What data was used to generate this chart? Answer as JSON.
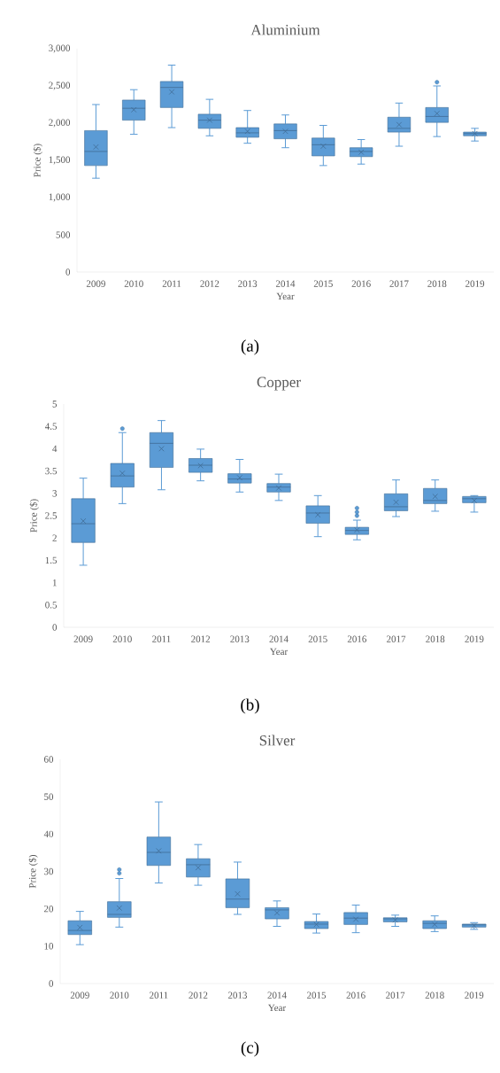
{
  "chart_data": [
    {
      "type": "box",
      "title": "Aluminium",
      "xlabel": "Year",
      "ylabel": "Price ($)",
      "annotations": [
        "(a)"
      ],
      "color": "#5b9bd5",
      "categories": [
        "2009",
        "2010",
        "2011",
        "2012",
        "2013",
        "2014",
        "2015",
        "2016",
        "2017",
        "2018",
        "2019"
      ],
      "ylim": [
        0,
        3000
      ],
      "yticks": [
        0,
        500,
        {
          "value": 1000,
          "label": "1,000"
        },
        {
          "value": 1500,
          "label": "1,500"
        },
        {
          "value": 2000,
          "label": "2,000"
        },
        {
          "value": 2500,
          "label": "2,500"
        },
        {
          "value": 3000,
          "label": "3,000"
        }
      ],
      "boxes": [
        {
          "low": 1260,
          "q1": 1430,
          "median": 1620,
          "q3": 1900,
          "high": 2250,
          "mean": 1680
        },
        {
          "low": 1850,
          "q1": 2040,
          "median": 2200,
          "q3": 2310,
          "high": 2450,
          "mean": 2180
        },
        {
          "low": 1940,
          "q1": 2210,
          "median": 2480,
          "q3": 2560,
          "high": 2780,
          "mean": 2420
        },
        {
          "low": 1830,
          "q1": 1930,
          "median": 2040,
          "q3": 2120,
          "high": 2320,
          "mean": 2040
        },
        {
          "low": 1730,
          "q1": 1810,
          "median": 1870,
          "q3": 1940,
          "high": 2170,
          "mean": 1890
        },
        {
          "low": 1670,
          "q1": 1790,
          "median": 1900,
          "q3": 1990,
          "high": 2110,
          "mean": 1890
        },
        {
          "low": 1430,
          "q1": 1560,
          "median": 1710,
          "q3": 1800,
          "high": 1970,
          "mean": 1690
        },
        {
          "low": 1450,
          "q1": 1550,
          "median": 1620,
          "q3": 1670,
          "high": 1780,
          "mean": 1610
        },
        {
          "low": 1690,
          "q1": 1880,
          "median": 1930,
          "q3": 2080,
          "high": 2270,
          "mean": 1980
        },
        {
          "low": 1820,
          "q1": 2010,
          "median": 2090,
          "q3": 2210,
          "high": 2500,
          "mean": 2130,
          "outliers": [
            2550
          ]
        },
        {
          "low": 1760,
          "q1": 1830,
          "median": 1860,
          "q3": 1880,
          "high": 1930,
          "mean": 1860
        }
      ]
    },
    {
      "type": "box",
      "title": "Copper",
      "xlabel": "Year",
      "ylabel": "Price ($)",
      "annotations": [
        "(b)"
      ],
      "color": "#5b9bd5",
      "categories": [
        "2009",
        "2010",
        "2011",
        "2012",
        "2013",
        "2014",
        "2015",
        "2016",
        "2017",
        "2018",
        "2019"
      ],
      "ylim": [
        0,
        5
      ],
      "yticks": [
        0,
        0.5,
        1,
        1.5,
        2,
        2.5,
        3,
        3.5,
        4,
        4.5,
        5
      ],
      "boxes": [
        {
          "low": 1.39,
          "q1": 1.9,
          "median": 2.32,
          "q3": 2.88,
          "high": 3.34,
          "mean": 2.38
        },
        {
          "low": 2.77,
          "q1": 3.14,
          "median": 3.39,
          "q3": 3.67,
          "high": 4.36,
          "mean": 3.45,
          "outliers": [
            4.45
          ]
        },
        {
          "low": 3.08,
          "q1": 3.58,
          "median": 4.12,
          "q3": 4.36,
          "high": 4.63,
          "mean": 4.0
        },
        {
          "low": 3.28,
          "q1": 3.47,
          "median": 3.63,
          "q3": 3.78,
          "high": 3.99,
          "mean": 3.62
        },
        {
          "low": 3.03,
          "q1": 3.23,
          "median": 3.32,
          "q3": 3.44,
          "high": 3.76,
          "mean": 3.35
        },
        {
          "low": 2.84,
          "q1": 3.03,
          "median": 3.14,
          "q3": 3.22,
          "high": 3.43,
          "mean": 3.12
        },
        {
          "low": 2.03,
          "q1": 2.33,
          "median": 2.56,
          "q3": 2.72,
          "high": 2.95,
          "mean": 2.52
        },
        {
          "low": 1.96,
          "q1": 2.08,
          "median": 2.17,
          "q3": 2.24,
          "high": 2.4,
          "mean": 2.18,
          "outliers": [
            2.5,
            2.58,
            2.67
          ]
        },
        {
          "low": 2.48,
          "q1": 2.61,
          "median": 2.7,
          "q3": 2.99,
          "high": 3.3,
          "mean": 2.8
        },
        {
          "low": 2.6,
          "q1": 2.77,
          "median": 2.84,
          "q3": 3.11,
          "high": 3.3,
          "mean": 2.93
        },
        {
          "low": 2.58,
          "q1": 2.79,
          "median": 2.88,
          "q3": 2.93,
          "high": 2.95,
          "mean": 2.84
        }
      ]
    },
    {
      "type": "box",
      "title": "Silver",
      "xlabel": "Year",
      "ylabel": "Price ($)",
      "annotations": [
        "(c)"
      ],
      "color": "#5b9bd5",
      "categories": [
        "2009",
        "2010",
        "2011",
        "2012",
        "2013",
        "2014",
        "2015",
        "2016",
        "2017",
        "2018",
        "2019"
      ],
      "ylim": [
        0,
        60
      ],
      "yticks": [
        0,
        10,
        20,
        30,
        40,
        50,
        60
      ],
      "boxes": [
        {
          "low": 10.4,
          "q1": 13.1,
          "median": 14.2,
          "q3": 16.8,
          "high": 19.3,
          "mean": 15.0
        },
        {
          "low": 15.1,
          "q1": 17.7,
          "median": 18.5,
          "q3": 21.9,
          "high": 28.1,
          "mean": 20.2,
          "outliers": [
            29.5,
            30.5
          ]
        },
        {
          "low": 26.9,
          "q1": 31.6,
          "median": 35.1,
          "q3": 39.2,
          "high": 48.6,
          "mean": 35.5
        },
        {
          "low": 26.3,
          "q1": 28.5,
          "median": 31.8,
          "q3": 33.4,
          "high": 37.2,
          "mean": 31.0
        },
        {
          "low": 18.5,
          "q1": 20.3,
          "median": 22.6,
          "q3": 28.0,
          "high": 32.5,
          "mean": 24.0
        },
        {
          "low": 15.3,
          "q1": 17.3,
          "median": 19.7,
          "q3": 20.3,
          "high": 22.1,
          "mean": 18.9
        },
        {
          "low": 13.5,
          "q1": 14.7,
          "median": 15.9,
          "q3": 16.6,
          "high": 18.6,
          "mean": 15.8
        },
        {
          "low": 13.6,
          "q1": 15.8,
          "median": 17.5,
          "q3": 19.0,
          "high": 21.0,
          "mean": 17.2
        },
        {
          "low": 15.3,
          "q1": 16.5,
          "median": 17.3,
          "q3": 17.6,
          "high": 18.3,
          "mean": 17.0
        },
        {
          "low": 13.9,
          "q1": 14.7,
          "median": 16.1,
          "q3": 16.8,
          "high": 18.1,
          "mean": 15.8
        },
        {
          "low": 14.5,
          "q1": 15.1,
          "median": 15.7,
          "q3": 15.9,
          "high": 16.3,
          "mean": 15.5
        }
      ]
    }
  ]
}
